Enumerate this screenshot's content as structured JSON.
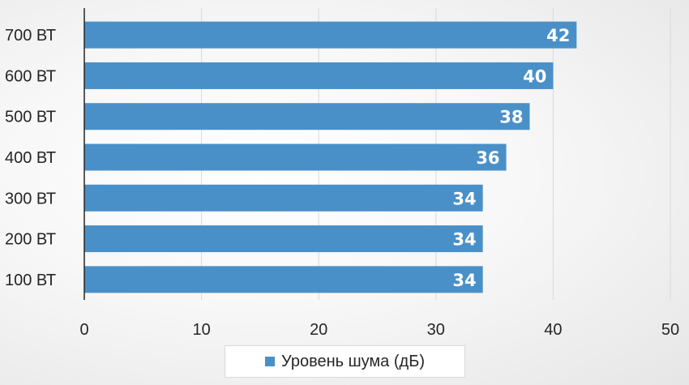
{
  "chart_data": {
    "type": "bar",
    "orientation": "horizontal",
    "categories": [
      "700 ВТ",
      "600 ВТ",
      "500 ВТ",
      "400 ВТ",
      "300 ВТ",
      "200 ВТ",
      "100 ВТ"
    ],
    "series": [
      {
        "name": "Уровень шума (дБ)",
        "values": [
          42,
          40,
          38,
          36,
          34,
          34,
          34
        ],
        "color": "#4a90c8"
      }
    ],
    "xticks": [
      0,
      10,
      20,
      30,
      40,
      50
    ],
    "xlim": [
      0,
      50
    ],
    "title": "",
    "xlabel": "",
    "ylabel": "",
    "grid": "vertical",
    "data_labels": true,
    "legend_position": "bottom"
  },
  "legend": {
    "label": "Уровень шума (дБ)"
  }
}
